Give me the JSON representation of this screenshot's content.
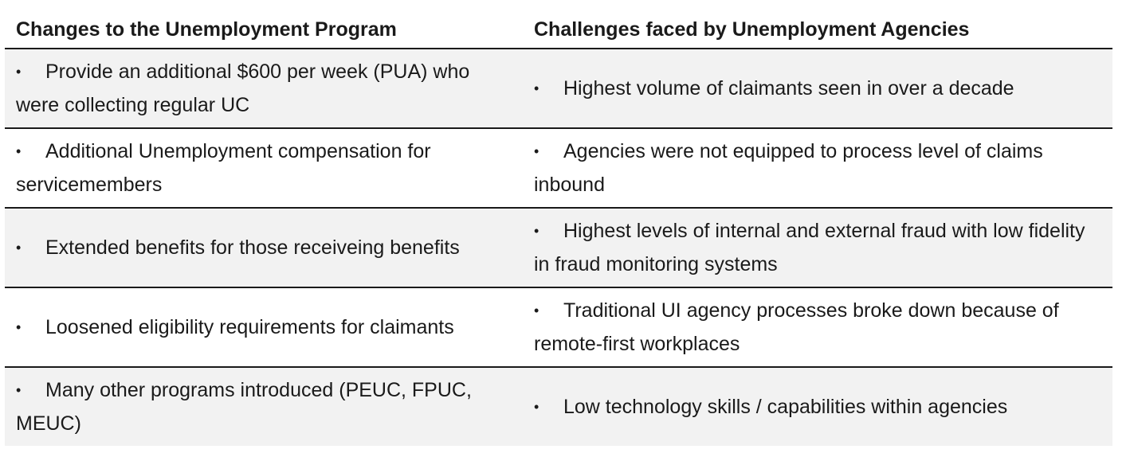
{
  "table": {
    "headers": [
      "Changes to the Unemployment Program",
      "Challenges faced by Unemployment Agencies"
    ],
    "bullet": "•",
    "rows": [
      {
        "change": "Provide an additional $600 per week (PUA) who were collecting regular UC",
        "challenge": "Highest volume of claimants seen in over a decade"
      },
      {
        "change": "Additional Unemployment compensation for servicemembers",
        "challenge": "Agencies were not equipped to process level of claims inbound"
      },
      {
        "change": "Extended benefits for those receiveing benefits",
        "challenge": "Highest levels of internal and external fraud with low fidelity in fraud monitoring systems"
      },
      {
        "change": "Loosened eligibility requirements for claimants",
        "challenge": "Traditional UI agency processes broke down because of remote-first workplaces"
      },
      {
        "change": "Many other programs introduced (PEUC, FPUC, MEUC)",
        "challenge": "Low technology skills / capabilities within agencies"
      }
    ]
  }
}
